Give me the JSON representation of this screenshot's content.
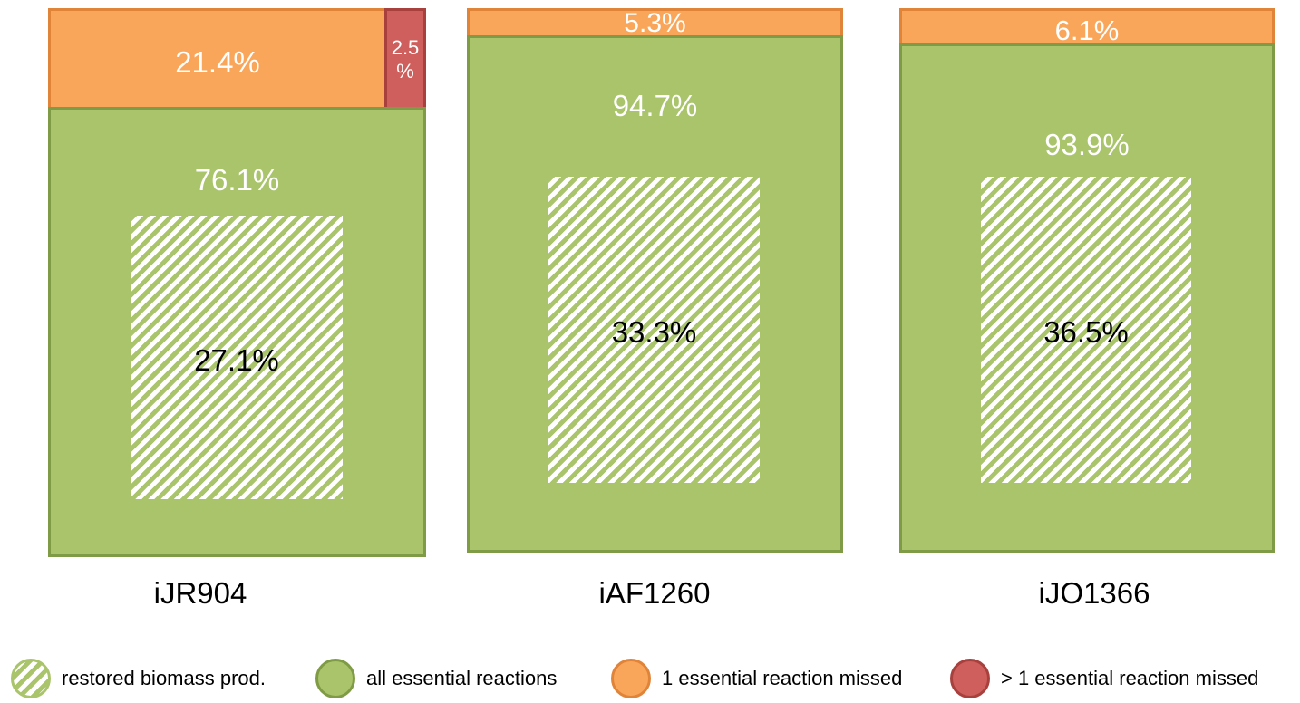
{
  "chart_data": [
    {
      "type": "area",
      "title": "iJR904",
      "segments": [
        {
          "name": "1 essential reaction missed",
          "value": 21.4,
          "label": "21.4%"
        },
        {
          "name": "> 1 essential reaction missed",
          "value": 2.5,
          "label_line1": "2.5",
          "label_line2": "%"
        },
        {
          "name": "all essential reactions",
          "value": 76.1,
          "label": "76.1%"
        },
        {
          "name": "restored biomass prod.",
          "value": 27.1,
          "label": "27.1%"
        }
      ]
    },
    {
      "type": "area",
      "title": "iAF1260",
      "segments": [
        {
          "name": "1 essential reaction missed",
          "value": 5.3,
          "label": "5.3%"
        },
        {
          "name": "all essential reactions",
          "value": 94.7,
          "label": "94.7%"
        },
        {
          "name": "restored biomass prod.",
          "value": 33.3,
          "label": "33.3%"
        }
      ]
    },
    {
      "type": "area",
      "title": "iJO1366",
      "segments": [
        {
          "name": "1 essential reaction missed",
          "value": 6.1,
          "label": "6.1%"
        },
        {
          "name": "all essential reactions",
          "value": 93.9,
          "label": "93.9%"
        },
        {
          "name": "restored biomass prod.",
          "value": 36.5,
          "label": "36.5%"
        }
      ]
    }
  ],
  "legend": {
    "items": [
      {
        "label": "restored biomass prod.",
        "icon": "hatched-green-circle",
        "color": "#a9c46b"
      },
      {
        "label": "all essential reactions",
        "icon": "green-circle",
        "color": "#a9c46b"
      },
      {
        "label": "1 essential reaction missed",
        "icon": "orange-circle",
        "color": "#faa65a"
      },
      {
        "label": "> 1 essential reaction missed",
        "icon": "red-circle",
        "color": "#cf5f5c"
      }
    ]
  },
  "colors": {
    "green": "#a9c46b",
    "orange": "#faa65a",
    "red": "#cf5f5c"
  }
}
